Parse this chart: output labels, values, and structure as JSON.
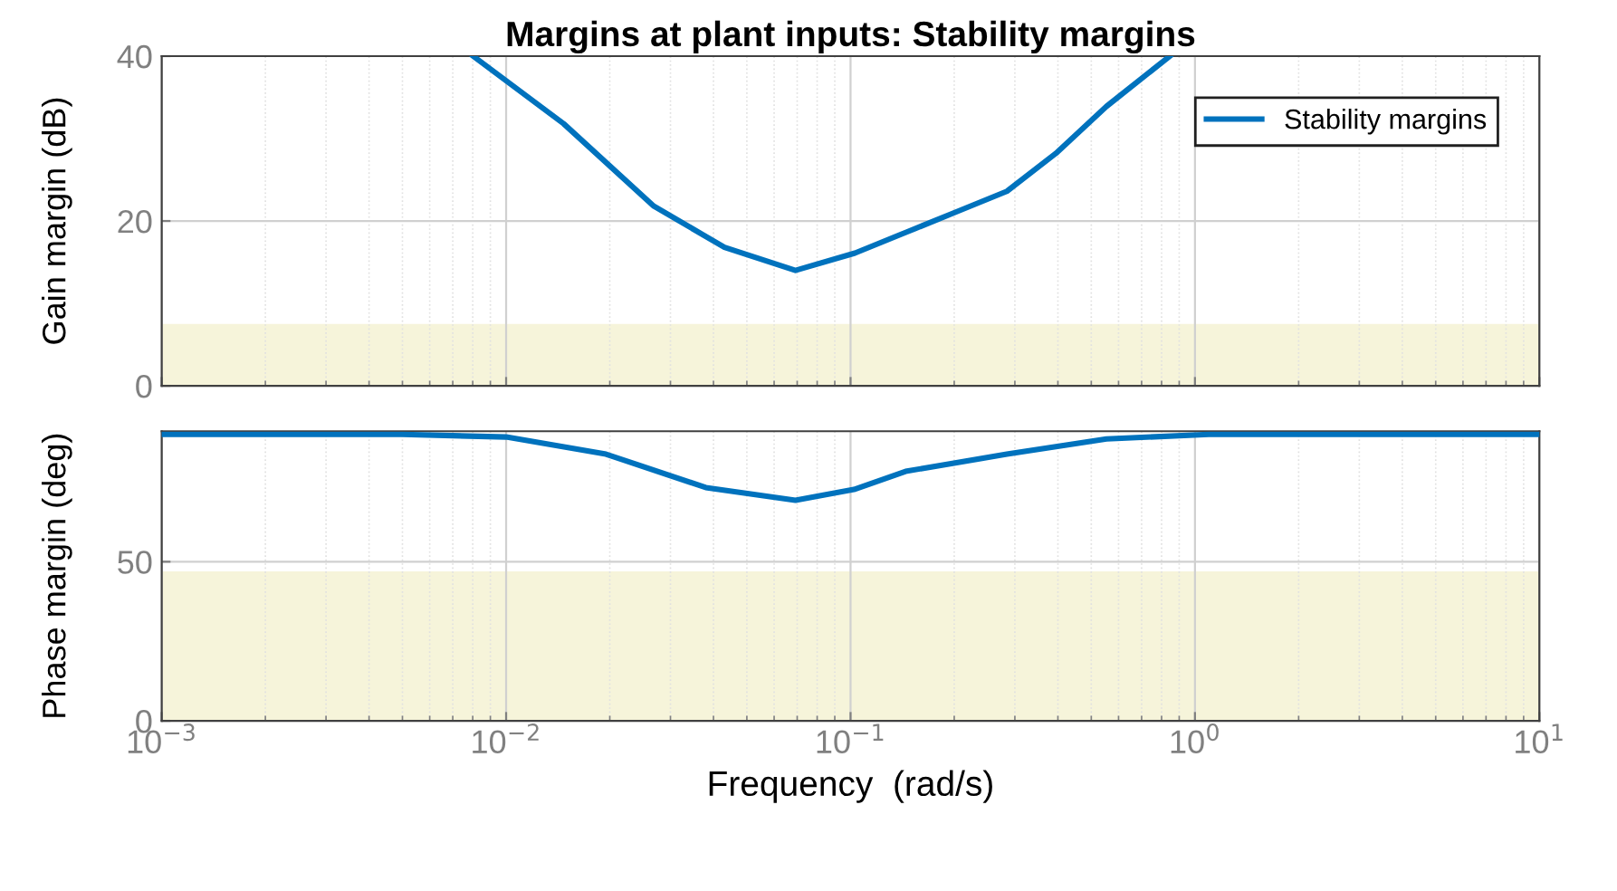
{
  "chart_data": [
    {
      "type": "line",
      "title": "Margins at plant inputs: Stability margins",
      "ylabel": "Gain margin (dB)",
      "x": [
        0.00802,
        0.01469,
        0.02685,
        0.04305,
        0.06918,
        0.103,
        0.1445,
        0.2028,
        0.2844,
        0.3945,
        0.5534,
        0.8453
      ],
      "series": [
        {
          "name": "Stability margins",
          "color": "#0072bd",
          "values": [
            40,
            31.8,
            21.8,
            16.8,
            14,
            16.1,
            18.6,
            21.1,
            23.6,
            28.2,
            33.9,
            40
          ]
        }
      ],
      "xlim": [
        0.001,
        10
      ],
      "log": "x",
      "xticks": [
        {
          "value": 0.001,
          "label": null
        },
        {
          "value": 0.01,
          "label": null
        },
        {
          "value": 0.1,
          "label": null
        },
        {
          "value": 1,
          "label": null
        },
        {
          "value": 10,
          "label": null
        }
      ],
      "ylim": [
        0,
        40
      ],
      "yticks": [
        0,
        20,
        40
      ],
      "tick_labels": "y",
      "bands": [
        {
          "axis": "y",
          "from": 0,
          "to": 7.5,
          "color": "#f6f4da"
        }
      ],
      "grid": true,
      "legend": "top right",
      "line_style": "solid",
      "marker": "none"
    },
    {
      "type": "line",
      "ylabel": "Phase margin (deg)",
      "xlabel": "Frequency  (rad/s)",
      "x": [
        0.001,
        0.005,
        0.01,
        0.0195,
        0.038,
        0.06918,
        0.1023,
        0.1445,
        0.2844,
        0.5534,
        1.096,
        10
      ],
      "series": [
        {
          "color": "#0072bd",
          "values": [
            90,
            90,
            89.2,
            83.8,
            73.3,
            69.3,
            72.7,
            78.4,
            83.8,
            88.6,
            90,
            90
          ]
        }
      ],
      "xlim": [
        0.001,
        10
      ],
      "log": "x",
      "xticks": [
        {
          "value": 0.001,
          "label": "10$^{−3}$"
        },
        {
          "value": 0.01,
          "label": "10$^{−2}$"
        },
        {
          "value": 0.1,
          "label": "10$^{−1}$"
        },
        {
          "value": 1,
          "label": "10$^{0}$"
        },
        {
          "value": 10,
          "label": "10$^{1}$"
        }
      ],
      "ylim": [
        0,
        91
      ],
      "yticks": [
        0,
        50
      ],
      "bands": [
        {
          "axis": "y",
          "from": 0,
          "to": 47,
          "color": "#f6f4da"
        }
      ],
      "grid": true,
      "line_style": "solid",
      "marker": "none"
    }
  ]
}
